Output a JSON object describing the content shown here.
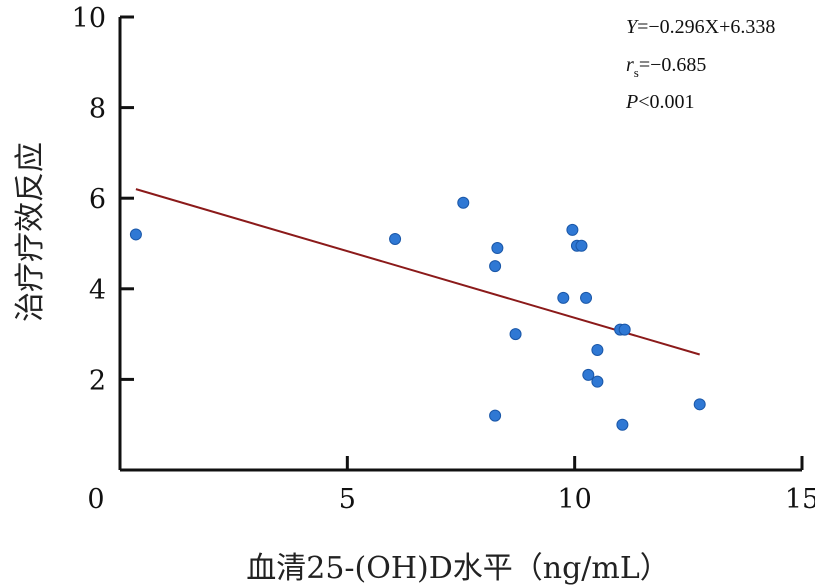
{
  "chart_data": {
    "type": "scatter",
    "xlabel": "血清25-(OH)D水平（ng/mL）",
    "ylabel": "治疗疗效反应",
    "xlim": [
      0,
      15
    ],
    "ylim": [
      0,
      10
    ],
    "x_ticks": [
      0,
      5,
      10,
      15
    ],
    "y_ticks": [
      2,
      4,
      6,
      8,
      10
    ],
    "grid": false,
    "points": [
      {
        "x": 0.35,
        "y": 5.2
      },
      {
        "x": 6.05,
        "y": 5.1
      },
      {
        "x": 7.55,
        "y": 5.9
      },
      {
        "x": 8.3,
        "y": 4.9
      },
      {
        "x": 8.25,
        "y": 4.5
      },
      {
        "x": 8.7,
        "y": 3.0
      },
      {
        "x": 8.25,
        "y": 1.2
      },
      {
        "x": 9.95,
        "y": 5.3
      },
      {
        "x": 10.05,
        "y": 4.95
      },
      {
        "x": 10.15,
        "y": 4.95
      },
      {
        "x": 9.75,
        "y": 3.8
      },
      {
        "x": 10.25,
        "y": 3.8
      },
      {
        "x": 11.0,
        "y": 3.1
      },
      {
        "x": 11.1,
        "y": 3.1
      },
      {
        "x": 10.5,
        "y": 2.65
      },
      {
        "x": 10.3,
        "y": 2.1
      },
      {
        "x": 10.5,
        "y": 1.95
      },
      {
        "x": 11.05,
        "y": 1.0
      },
      {
        "x": 12.75,
        "y": 1.45
      }
    ],
    "regression_line": {
      "x": [
        0.35,
        12.75
      ],
      "y": [
        6.2,
        2.55
      ]
    },
    "annotations": [
      {
        "id": "equation",
        "prefix": "Y",
        "text": "=−0.296X+6.338"
      },
      {
        "id": "rs",
        "prefix": "r",
        "subscript": "s",
        "text": "=−0.685"
      },
      {
        "id": "p",
        "prefix": "P",
        "text": "<0.001"
      }
    ],
    "colors": {
      "points": "#2f78d4",
      "line": "#8b1a1a",
      "axes": "#111111"
    }
  }
}
